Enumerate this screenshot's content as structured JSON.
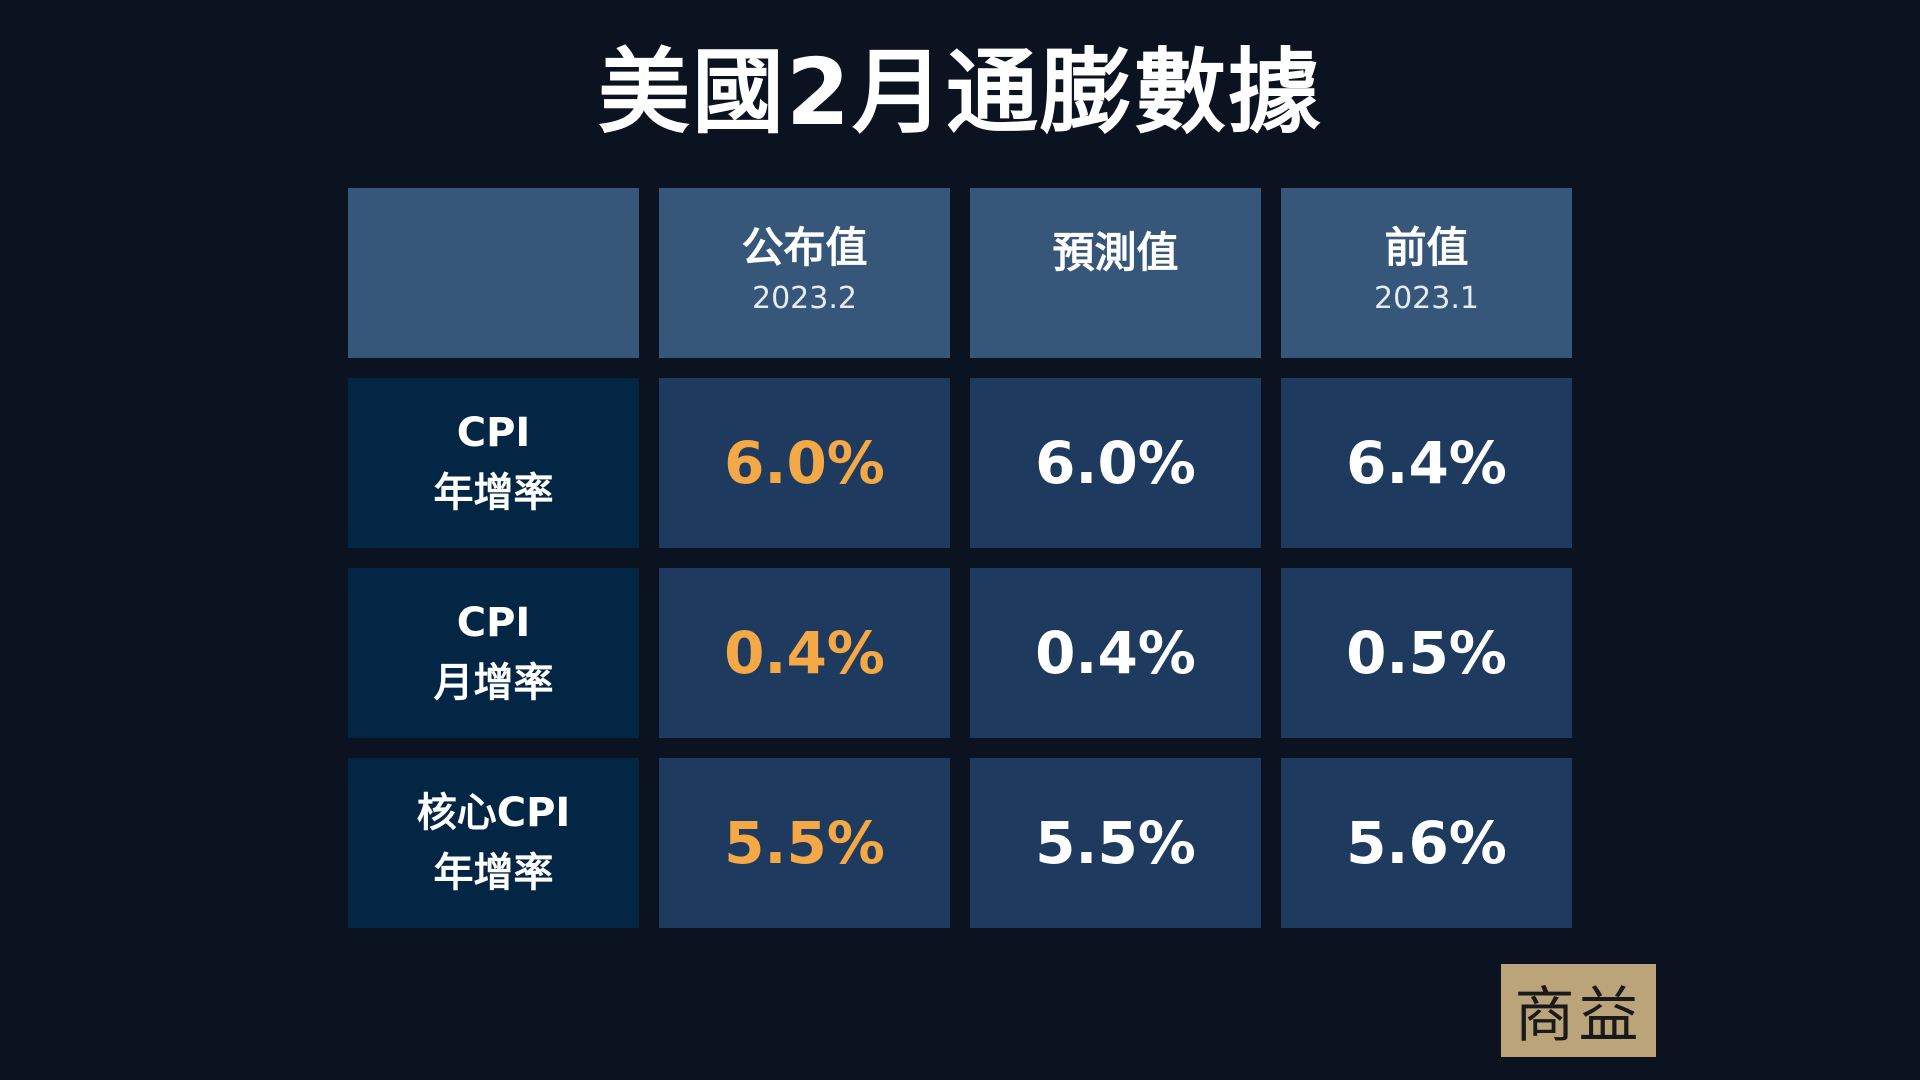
{
  "title": "美國2月通膨數據",
  "columns": [
    {
      "label": "",
      "sub": ""
    },
    {
      "label": "公布值",
      "sub": "2023.2"
    },
    {
      "label": "預測值",
      "sub": ""
    },
    {
      "label": "前值",
      "sub": "2023.1"
    }
  ],
  "rows": [
    {
      "line1": "CPI",
      "line2": "年增率",
      "actual": "6.0%",
      "forecast": "6.0%",
      "previous": "6.4%"
    },
    {
      "line1": "CPI",
      "line2": "月增率",
      "actual": "0.4%",
      "forecast": "0.4%",
      "previous": "0.5%"
    },
    {
      "line1": "核心CPI",
      "line2": "年增率",
      "actual": "5.5%",
      "forecast": "5.5%",
      "previous": "5.6%"
    }
  ],
  "logo": "商益",
  "colors": {
    "background": "#0b1220",
    "header": "#36567a",
    "row_label": "#022644",
    "value_cell": "#1e3b5f",
    "highlight": "#f4a846",
    "logo_bg": "#bba47a"
  }
}
